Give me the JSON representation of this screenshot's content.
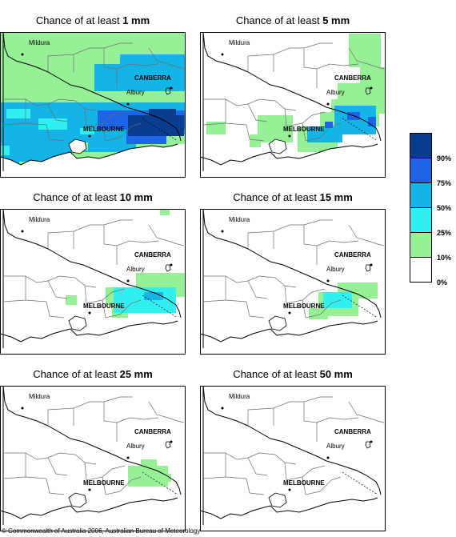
{
  "panels": [
    {
      "prefix": "Chance of at least ",
      "amount": "1 mm",
      "level": 1
    },
    {
      "prefix": "Chance of at least ",
      "amount": "5 mm",
      "level": 5
    },
    {
      "prefix": "Chance of at least ",
      "amount": "10 mm",
      "level": 10
    },
    {
      "prefix": "Chance of at least ",
      "amount": "15 mm",
      "level": 15
    },
    {
      "prefix": "Chance of at least ",
      "amount": "25 mm",
      "level": 25
    },
    {
      "prefix": "Chance of at least ",
      "amount": "50 mm",
      "level": 50
    }
  ],
  "places": {
    "mildura": "Mildura",
    "canberra": "CANBERRA",
    "albury": "Albury",
    "melbourne": "MELBOURNE"
  },
  "legend": [
    {
      "label": "90%",
      "color": "#0a3d8f"
    },
    {
      "label": "75%",
      "color": "#1e64e6"
    },
    {
      "label": "50%",
      "color": "#14b4e6"
    },
    {
      "label": "25%",
      "color": "#32f0f0"
    },
    {
      "label": "10%",
      "color": "#96f096"
    },
    {
      "label": "0%",
      "color": "#ffffff"
    }
  ],
  "footer": "© Commonwealth of Australia 2006, Australian Bureau of Meteorology"
}
